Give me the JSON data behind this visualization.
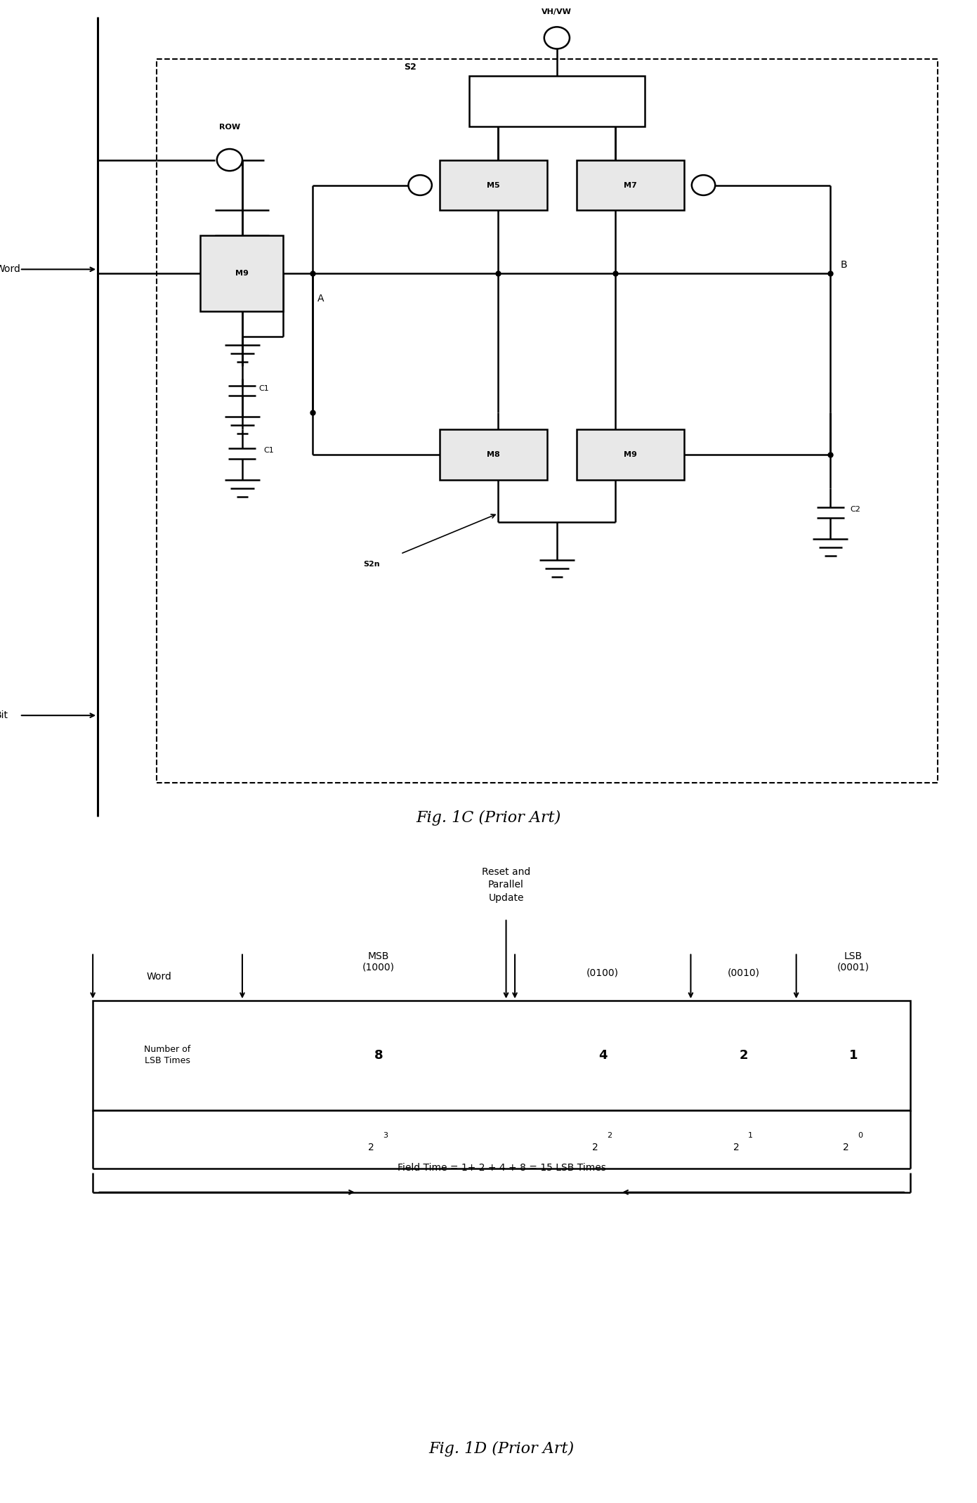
{
  "fig_title_1c": "Fig. 1C (Prior Art)",
  "fig_title_1d": "Fig. 1D (Prior Art)",
  "background_color": "#ffffff",
  "line_color": "#000000",
  "title_fontsize": 16,
  "label_fontsize": 10,
  "small_fontsize": 8,
  "table_labels": {
    "reset_text": "Reset and\nParallel\nUpdate",
    "word_label": "Word",
    "msb_label": "MSB\n(1000)",
    "col2_label": "(0100)",
    "col3_label": "(0010)",
    "lsb_label": "LSB\n(0001)",
    "row1_label": "Number of\nLSB Times",
    "val1": "8",
    "val2": "4",
    "val3": "2",
    "val4": "1",
    "field_time_text": "Field Time = 1+ 2 + 4 + 8 = 15 LSB Times"
  }
}
